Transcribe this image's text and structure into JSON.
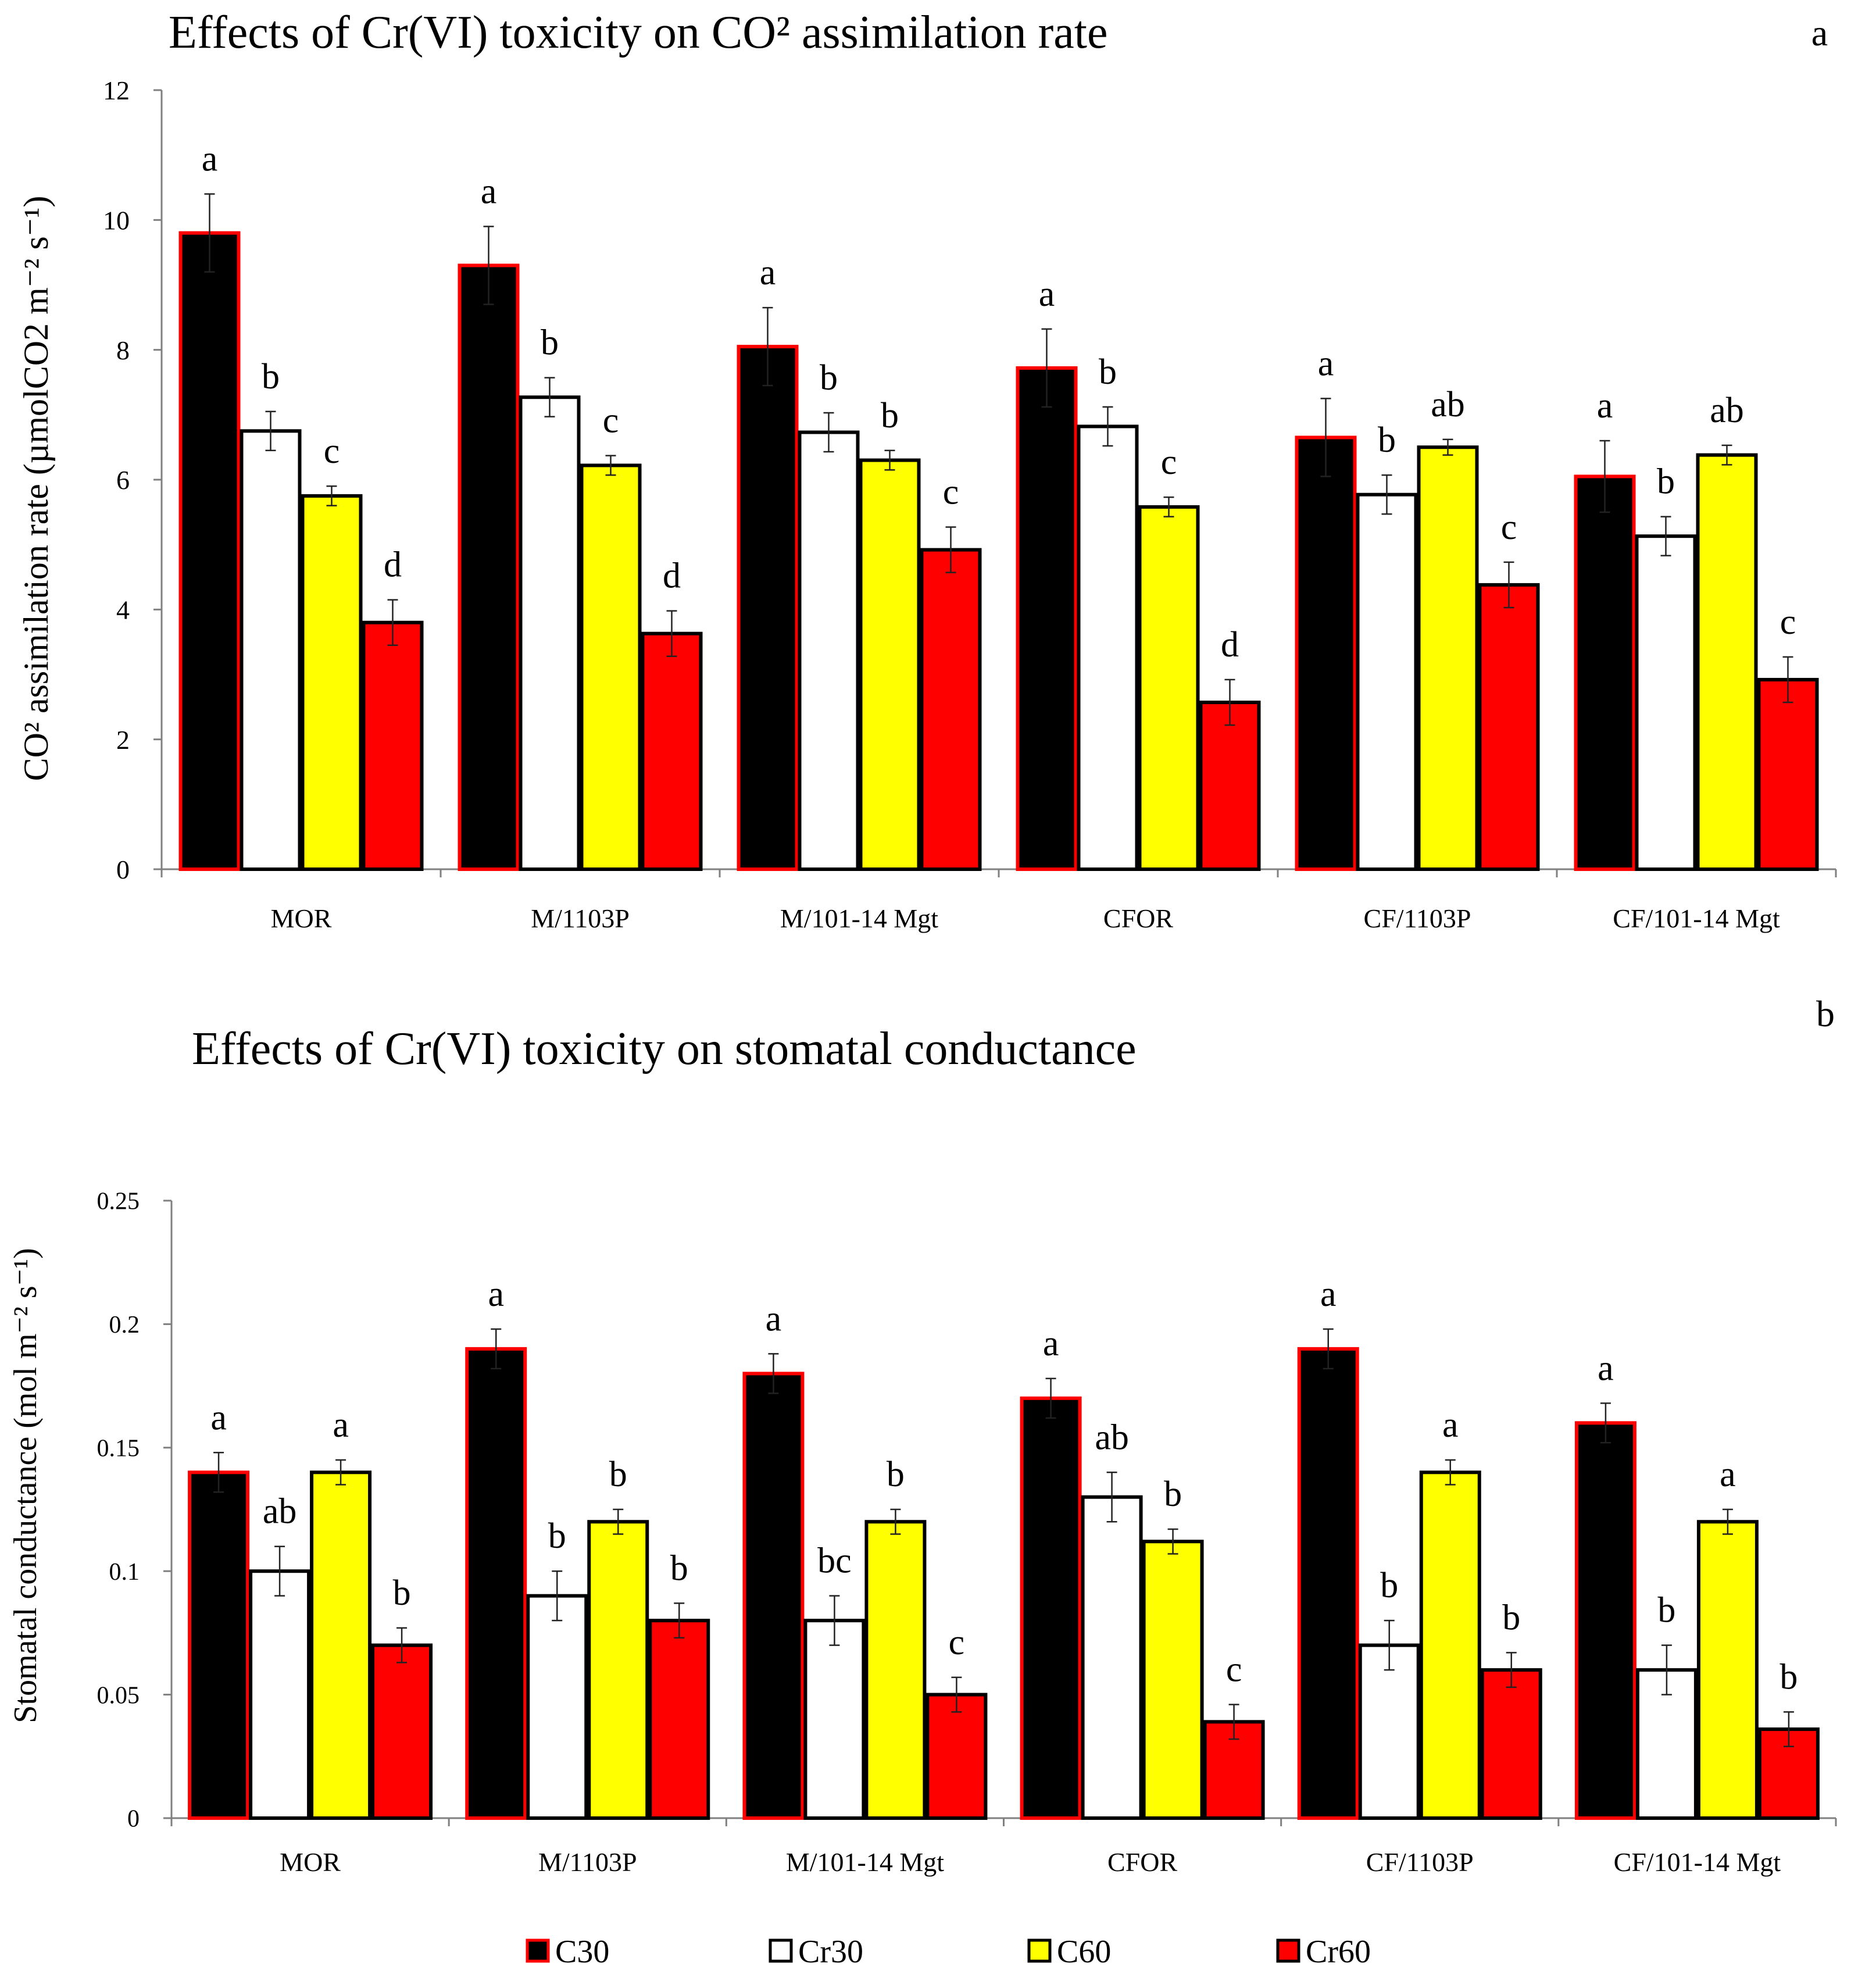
{
  "colors": {
    "C30": "#000000",
    "Cr30": "#ffffff",
    "C60": "#ffff00",
    "Cr60": "#ff0000",
    "C30_outline": "#ff0000",
    "outline": "#000000",
    "axis": "#808080"
  },
  "legend": [
    {
      "key": "C30",
      "label": "C30"
    },
    {
      "key": "Cr30",
      "label": "Cr30"
    },
    {
      "key": "C60",
      "label": "C60"
    },
    {
      "key": "Cr60",
      "label": "Cr60"
    }
  ],
  "chart_data": [
    {
      "type": "bar",
      "panel_label": "a",
      "title": "Effects of Cr(VI) toxicity on CO² assimilation rate",
      "ylabel": "CO² assimilation rate  (µmolCO2  m⁻² s⁻¹)",
      "ylim": [
        0,
        12
      ],
      "yticks": [
        0,
        2,
        4,
        6,
        8,
        10,
        12
      ],
      "ytick_labels": [
        "0",
        "2",
        "4",
        "6",
        "8",
        "10",
        "12"
      ],
      "grid": false,
      "categories": [
        "MOR",
        "M/1103P",
        "M/101-14 Mgt",
        "CFOR",
        "CF/1103P",
        "CF/101-14 Mgt"
      ],
      "series": [
        {
          "name": "C30",
          "values": [
            9.8,
            9.3,
            8.05,
            7.72,
            6.65,
            6.05
          ],
          "errors": [
            0.6,
            0.6,
            0.6,
            0.6,
            0.6,
            0.55
          ],
          "letters": [
            "a",
            "a",
            "a",
            "a",
            "a",
            "a"
          ]
        },
        {
          "name": "Cr30",
          "values": [
            6.75,
            7.27,
            6.73,
            6.82,
            5.77,
            5.13
          ],
          "errors": [
            0.3,
            0.3,
            0.3,
            0.3,
            0.3,
            0.3
          ],
          "letters": [
            "b",
            "b",
            "b",
            "b",
            "b",
            "b"
          ]
        },
        {
          "name": "C60",
          "values": [
            5.75,
            6.22,
            6.3,
            5.58,
            6.5,
            6.38
          ],
          "errors": [
            0.15,
            0.15,
            0.15,
            0.15,
            0.12,
            0.15
          ],
          "letters": [
            "c",
            "c",
            "b",
            "c",
            "ab",
            "ab"
          ]
        },
        {
          "name": "Cr60",
          "values": [
            3.8,
            3.63,
            4.92,
            2.57,
            4.38,
            2.92
          ],
          "errors": [
            0.35,
            0.35,
            0.35,
            0.35,
            0.35,
            0.35
          ],
          "letters": [
            "d",
            "d",
            "c",
            "d",
            "c",
            "c"
          ]
        }
      ]
    },
    {
      "type": "bar",
      "panel_label": "b",
      "title": "Effects of Cr(VI) toxicity on stomatal conductance",
      "ylabel": "Stomatal conductance (mol m⁻² s⁻¹)",
      "ylim": [
        0,
        0.25
      ],
      "yticks": [
        0,
        0.05,
        0.1,
        0.15,
        0.2,
        0.25
      ],
      "ytick_labels": [
        "0",
        "0.05",
        "0.1",
        "0.15",
        "0.2",
        "0.25"
      ],
      "grid": false,
      "categories": [
        "MOR",
        "M/1103P",
        "M/101-14 Mgt",
        "CFOR",
        "CF/1103P",
        "CF/101-14 Mgt"
      ],
      "series": [
        {
          "name": "C30",
          "values": [
            0.14,
            0.19,
            0.18,
            0.17,
            0.19,
            0.16
          ],
          "errors": [
            0.008,
            0.008,
            0.008,
            0.008,
            0.008,
            0.008
          ],
          "letters": [
            "a",
            "a",
            "a",
            "a",
            "a",
            "a"
          ]
        },
        {
          "name": "Cr30",
          "values": [
            0.1,
            0.09,
            0.08,
            0.13,
            0.07,
            0.06
          ],
          "errors": [
            0.01,
            0.01,
            0.01,
            0.01,
            0.01,
            0.01
          ],
          "letters": [
            "ab",
            "b",
            "bc",
            "ab",
            "b",
            "b"
          ]
        },
        {
          "name": "C60",
          "values": [
            0.14,
            0.12,
            0.12,
            0.112,
            0.14,
            0.12
          ],
          "errors": [
            0.005,
            0.005,
            0.005,
            0.005,
            0.005,
            0.005
          ],
          "letters": [
            "a",
            "b",
            "b",
            "b",
            "a",
            "a"
          ]
        },
        {
          "name": "Cr60",
          "values": [
            0.07,
            0.08,
            0.05,
            0.039,
            0.06,
            0.036
          ],
          "errors": [
            0.007,
            0.007,
            0.007,
            0.007,
            0.007,
            0.007
          ],
          "letters": [
            "b",
            "b",
            "c",
            "c",
            "b",
            "b"
          ]
        }
      ]
    }
  ]
}
